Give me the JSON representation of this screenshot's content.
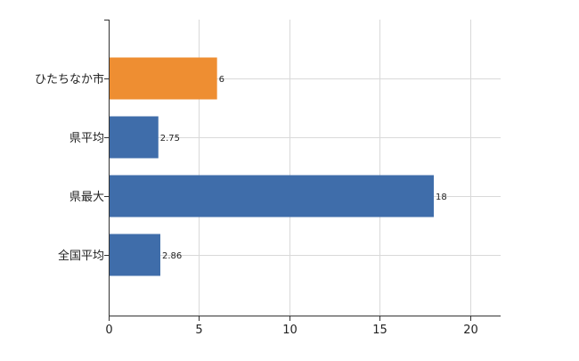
{
  "chart_data": {
    "type": "bar",
    "orientation": "horizontal",
    "categories": [
      "ひたちなか市",
      "県平均",
      "県最大",
      "全国平均"
    ],
    "values": [
      6,
      2.75,
      18,
      2.86
    ],
    "value_labels": [
      "6",
      "2.75",
      "18",
      "2.86"
    ],
    "bar_colors": [
      "#EE8E32",
      "#3F6DAA",
      "#3F6DAA",
      "#3F6DAA"
    ],
    "xlim": [
      0,
      21.7
    ],
    "x_ticks": [
      0,
      5,
      10,
      15,
      20
    ],
    "x_tick_labels": [
      "0",
      "5",
      "10",
      "15",
      "20"
    ],
    "grid": true,
    "title": "",
    "xlabel": "",
    "ylabel": ""
  }
}
